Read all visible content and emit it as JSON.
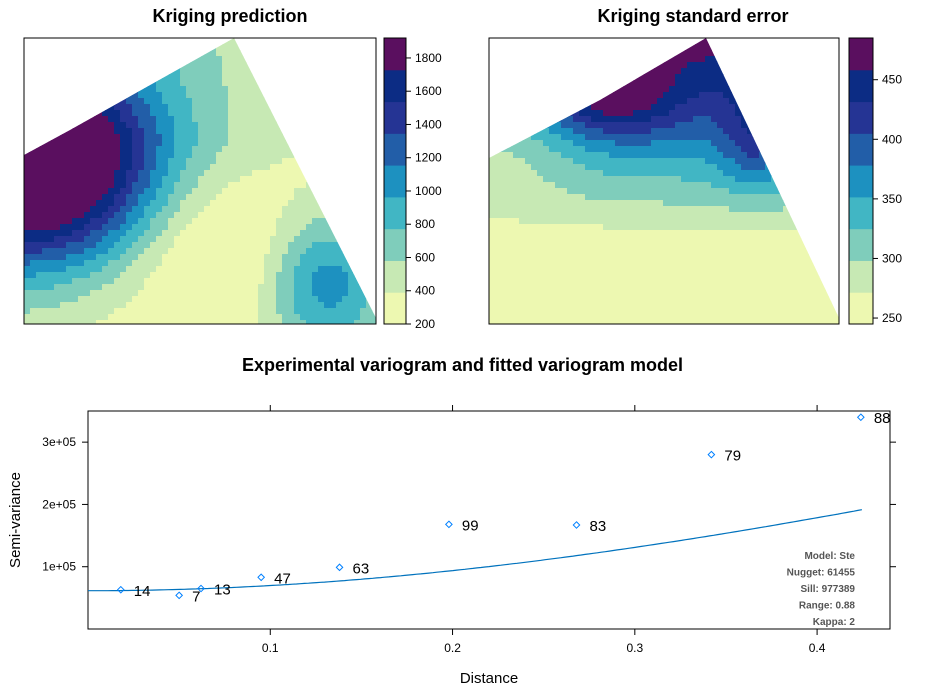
{
  "chart_data": [
    {
      "type": "heatmap",
      "title": "Kriging prediction",
      "colorbar": {
        "ticks": [
          "200",
          "400",
          "600",
          "800",
          "1000",
          "1200",
          "1400",
          "1600",
          "1800"
        ],
        "range": [
          200,
          1920
        ],
        "colors": [
          "#edf8b1",
          "#c7e9b4",
          "#7fcdbb",
          "#41b6c4",
          "#1d91c0",
          "#225ea8",
          "#253494",
          "#0c2c84",
          "#5a0f5f"
        ]
      }
    },
    {
      "type": "heatmap",
      "title": "Kriging standard error",
      "colorbar": {
        "ticks": [
          "250",
          "300",
          "350",
          "400",
          "450"
        ],
        "range": [
          245,
          485
        ],
        "colors": [
          "#edf8b1",
          "#c7e9b4",
          "#7fcdbb",
          "#41b6c4",
          "#1d91c0",
          "#225ea8",
          "#253494",
          "#0c2c84",
          "#5a0f5f"
        ]
      }
    },
    {
      "type": "scatter",
      "title": "Experimental variogram and fitted variogram model",
      "xlabel": "Distance",
      "ylabel": "Semi-variance",
      "xlim": [
        0.0,
        0.44
      ],
      "ylim": [
        0,
        350000
      ],
      "x_ticks": [
        {
          "v": 0.1,
          "label": "0.1"
        },
        {
          "v": 0.2,
          "label": "0.2"
        },
        {
          "v": 0.3,
          "label": "0.3"
        },
        {
          "v": 0.4,
          "label": "0.4"
        }
      ],
      "y_ticks": [
        {
          "v": 100000,
          "label": "1e+05"
        },
        {
          "v": 200000,
          "label": "2e+05"
        },
        {
          "v": 300000,
          "label": "3e+05"
        }
      ],
      "points": [
        {
          "x": 0.018,
          "y": 63000,
          "n": "14"
        },
        {
          "x": 0.05,
          "y": 54000,
          "n": "7"
        },
        {
          "x": 0.062,
          "y": 65000,
          "n": "13"
        },
        {
          "x": 0.095,
          "y": 83000,
          "n": "47"
        },
        {
          "x": 0.138,
          "y": 99000,
          "n": "63"
        },
        {
          "x": 0.198,
          "y": 168000,
          "n": "99"
        },
        {
          "x": 0.268,
          "y": 167000,
          "n": "83"
        },
        {
          "x": 0.342,
          "y": 280000,
          "n": "79"
        },
        {
          "x": 0.424,
          "y": 340000,
          "n": "88"
        }
      ],
      "model": {
        "type": "Ste",
        "nugget": 61455,
        "sill": 977389,
        "range": 0.88,
        "kappa": 2
      },
      "model_labels": [
        "Model: Ste",
        "Nugget: 61455",
        "Sill: 977389",
        "Range: 0.88",
        "Kappa: 2"
      ],
      "colors": {
        "points": "#0080ff",
        "line": "#0072bd"
      }
    }
  ]
}
